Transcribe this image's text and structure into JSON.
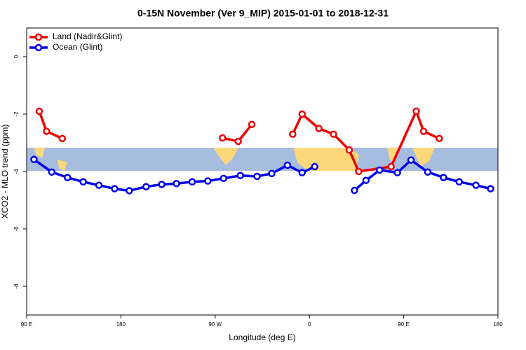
{
  "chart_data": {
    "type": "line",
    "title": "0-15N November (Ver 9_MIP)   2015-01-01 to 2018-12-31",
    "xlabel": "Longitude (deg E)",
    "ylabel": "XCO2 - MLO trend (ppm)",
    "xlim": [
      90,
      540
    ],
    "ylim": [
      -9,
      1
    ],
    "xticks": [
      {
        "value": 90,
        "label": "90 E"
      },
      180,
      {
        "value": 270,
        "label": "90 W"
      },
      {
        "value": 360,
        "label": "0"
      },
      {
        "value": 450,
        "label": "90 E"
      },
      180
    ],
    "yticks": [
      0,
      -2,
      -4,
      -6,
      -8
    ],
    "legend": "top-left",
    "series": [
      {
        "name": "Land (Nadir&Glint)",
        "color": "#ee0000",
        "x": [
          102,
          109,
          124,
          null,
          277,
          292,
          305,
          null,
          344,
          353,
          369,
          383,
          398,
          407,
          438,
          462,
          469,
          484
        ],
        "values": [
          -1.9,
          -2.6,
          -2.85,
          null,
          -2.83,
          -2.95,
          -2.36,
          null,
          -2.7,
          -2.0,
          -2.5,
          -2.7,
          -3.25,
          -4.0,
          -3.83,
          -1.9,
          -2.6,
          -2.85
        ]
      },
      {
        "name": "Ocean (Glint)",
        "color": "#0000ee",
        "x": [
          97,
          114,
          129,
          144,
          159,
          174,
          188,
          204,
          219,
          233,
          248,
          263,
          278,
          294,
          310,
          324,
          339,
          353,
          365,
          null,
          403,
          414,
          427,
          444,
          457,
          473,
          488,
          503,
          519,
          533
        ],
        "values": [
          -3.58,
          -4.02,
          -4.21,
          -4.36,
          -4.48,
          -4.6,
          -4.67,
          -4.53,
          -4.45,
          -4.42,
          -4.36,
          -4.33,
          -4.24,
          -4.14,
          -4.17,
          -4.07,
          -3.78,
          -4.04,
          -3.83,
          null,
          -4.66,
          -4.31,
          -3.95,
          -4.04,
          -3.6,
          -4.02,
          -4.21,
          -4.36,
          -4.48,
          -4.6
        ]
      }
    ]
  }
}
